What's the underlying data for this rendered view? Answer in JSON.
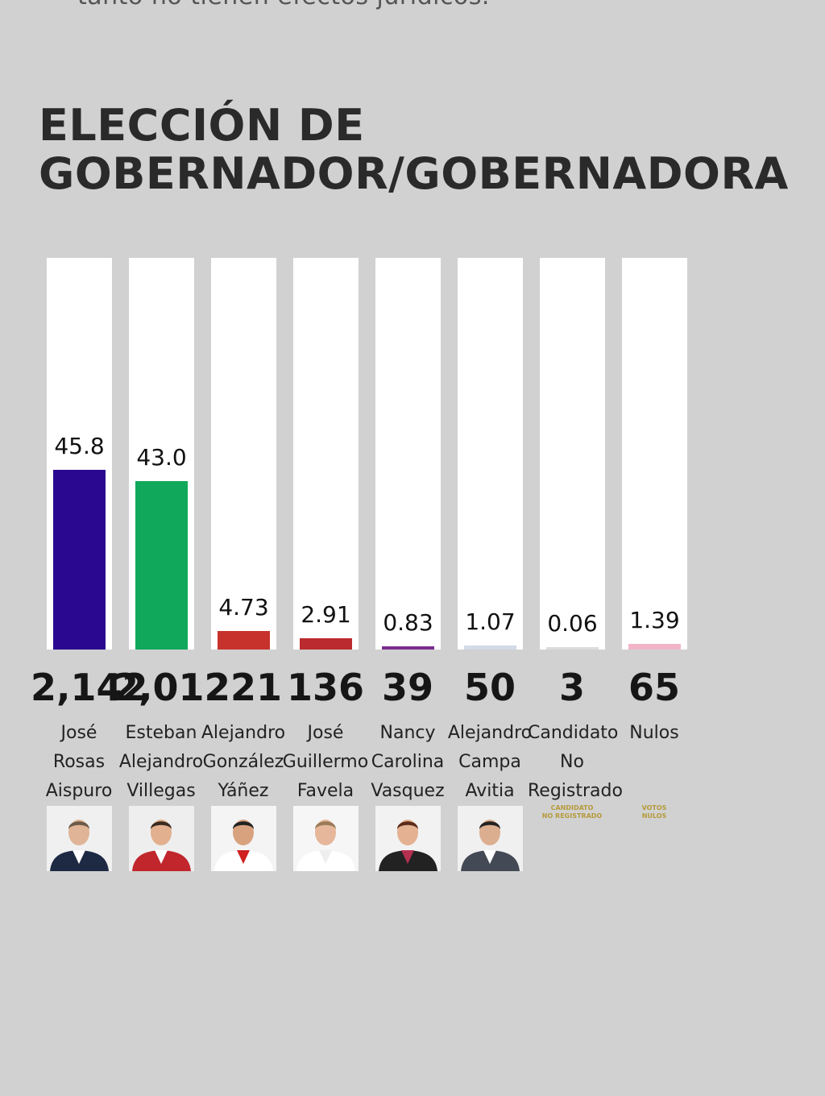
{
  "top_note": "tanto no tienen efectos jurídicos.",
  "title_lines": [
    "ELECCIÓN DE",
    "GOBERNADOR/GOBERNADORA"
  ],
  "chart_data": {
    "type": "bar",
    "title": "ELECCIÓN DE GOBERNADOR/GOBERNADORA",
    "ylim": [
      0,
      100
    ],
    "categories": [
      "José Rosas Aispuro",
      "Esteban Alejandro Villegas",
      "Alejandro González Yáñez",
      "José Guillermo Favela",
      "Nancy Carolina Vasquez",
      "Alejandro Campa Avitia",
      "Candidato No Registrado",
      "Nulos"
    ],
    "values": [
      45.8,
      43.0,
      4.73,
      2.91,
      0.83,
      1.07,
      0.06,
      1.39
    ],
    "value_labels": [
      "45.8",
      "43.0",
      "4.73",
      "2.91",
      "0.83",
      "1.07",
      "0.06",
      "1.39"
    ],
    "votes": [
      "2,142",
      "2,012",
      "221",
      "136",
      "39",
      "50",
      "3",
      "65"
    ],
    "colors": [
      "#2a0990",
      "#10a85a",
      "#c8322c",
      "#bb2a2e",
      "#7b2d8e",
      "#d2dbe6",
      "#dcdcdc",
      "#f1b5c7"
    ],
    "name_lines": [
      [
        "José",
        "Rosas",
        "Aispuro"
      ],
      [
        "Esteban",
        "Alejandro",
        "Villegas"
      ],
      [
        "Alejandro",
        "González",
        "Yáñez"
      ],
      [
        "José",
        "Guillermo",
        "Favela"
      ],
      [
        "Nancy",
        "Carolina",
        "Vasquez"
      ],
      [
        "Alejandro",
        "Campa",
        "Avitia"
      ],
      [
        "Candidato",
        "No",
        "Registrado"
      ],
      [
        "Nulos"
      ]
    ],
    "image_labels": [
      null,
      null,
      null,
      null,
      null,
      null,
      [
        "CANDIDATO",
        "NO REGISTRADO"
      ],
      [
        "VOTOS",
        "NULOS"
      ]
    ],
    "photo_palette": [
      {
        "bg": "#f0f0f0",
        "suit": "#1e2a44",
        "shirt": "#ffffff",
        "hair": "#6b5a48",
        "skin": "#e0b496"
      },
      {
        "bg": "#eeeeee",
        "suit": "#c0262c",
        "shirt": "#ffffff",
        "hair": "#3a2a20",
        "skin": "#e2b08e"
      },
      {
        "bg": "#f4f4f4",
        "suit": "#ffffff",
        "shirt": "#d02020",
        "hair": "#222222",
        "skin": "#d9a27e"
      },
      {
        "bg": "#f6f6f6",
        "suit": "#ffffff",
        "shirt": "#eeeeee",
        "hair": "#9a7a58",
        "skin": "#e6b79a"
      },
      {
        "bg": "#f2f2f2",
        "suit": "#222222",
        "shirt": "#b43050",
        "hair": "#5a2a1a",
        "skin": "#e4b292"
      },
      {
        "bg": "#f0f0f0",
        "suit": "#444a55",
        "shirt": "#ffffff",
        "hair": "#222222",
        "skin": "#dcae90"
      }
    ]
  }
}
